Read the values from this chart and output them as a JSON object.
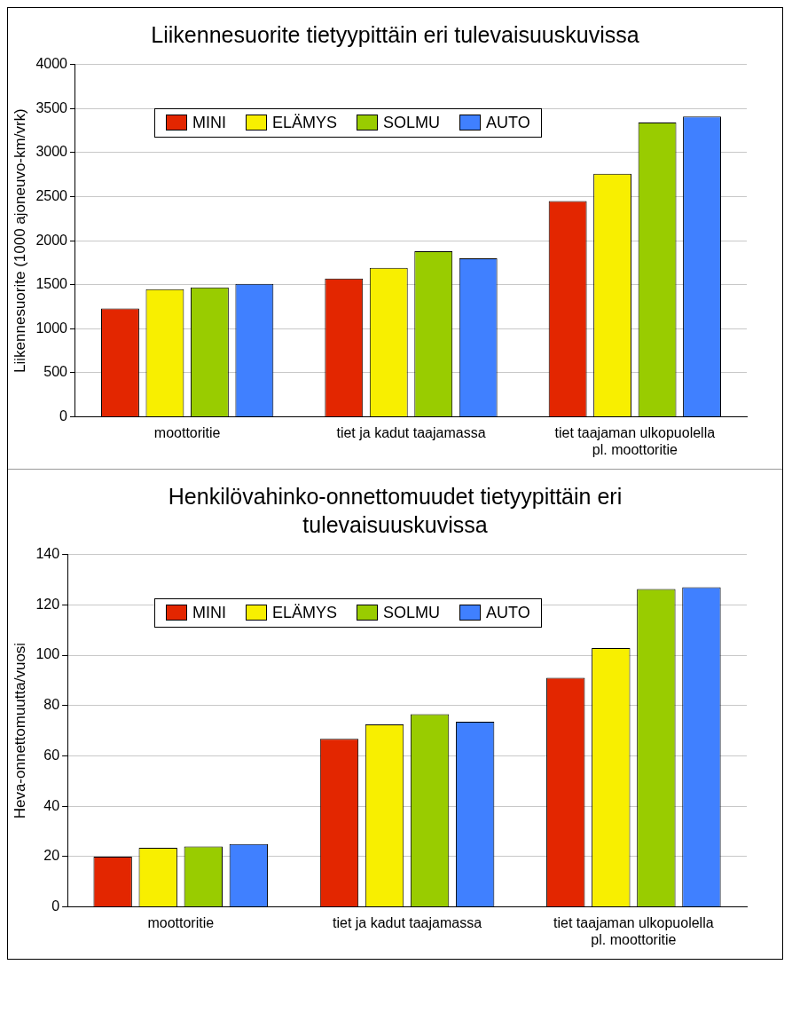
{
  "chart_data": [
    {
      "type": "bar",
      "title": "Liikennesuorite tietyypittäin eri tulevaisuuskuvissa",
      "ylabel": "Liikennesuorite (1000 ajoneuvo-km/vrk)",
      "categories": [
        "moottoritie",
        "tiet ja kadut taajamassa",
        "tiet taajaman ulkopuolella pl. moottoritie"
      ],
      "series": [
        {
          "name": "MINI",
          "color": "#e32600",
          "values": [
            1230,
            1570,
            2450
          ]
        },
        {
          "name": "ELÄMYS",
          "color": "#f8ef00",
          "values": [
            1450,
            1690,
            2760
          ]
        },
        {
          "name": "SOLMU",
          "color": "#99cc00",
          "values": [
            1470,
            1880,
            3340
          ]
        },
        {
          "name": "AUTO",
          "color": "#4080ff",
          "values": [
            1510,
            1800,
            3410
          ]
        }
      ],
      "ylim": [
        0,
        4000
      ],
      "yticks": [
        0,
        500,
        1000,
        1500,
        2000,
        2500,
        3000,
        3500,
        4000
      ],
      "grid": "y",
      "legend": "top left"
    },
    {
      "type": "bar",
      "title": "Henkilövahinko-onnettomuudet tietyypittäin eri tulevaisuuskuvissa",
      "ylabel": "Heva-onnettomuutta/vuosi",
      "categories": [
        "moottoritie",
        "tiet ja kadut taajamassa",
        "tiet taajaman ulkopuolella pl. moottoritie"
      ],
      "series": [
        {
          "name": "MINI",
          "color": "#e32600",
          "values": [
            20,
            66.8,
            91
          ]
        },
        {
          "name": "ELÄMYS",
          "color": "#f8ef00",
          "values": [
            23.5,
            72.5,
            102.8
          ]
        },
        {
          "name": "SOLMU",
          "color": "#99cc00",
          "values": [
            24,
            76.6,
            126.3
          ]
        },
        {
          "name": "AUTO",
          "color": "#4080ff",
          "values": [
            25,
            73.6,
            127
          ]
        }
      ],
      "ylim": [
        0,
        140
      ],
      "yticks": [
        0,
        20,
        40,
        60,
        80,
        100,
        120,
        140
      ],
      "grid": "y",
      "legend": "top left"
    }
  ]
}
